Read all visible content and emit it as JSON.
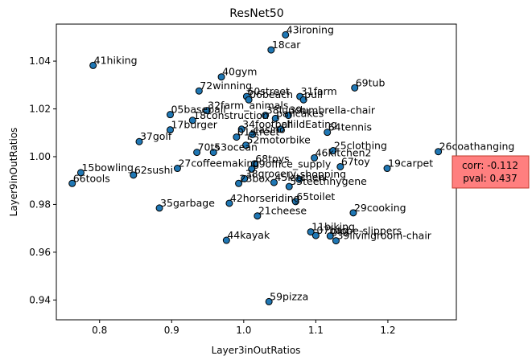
{
  "chart_data": {
    "type": "scatter",
    "title": "ResNet50",
    "xlabel": "Layer3inOutRatios",
    "ylabel": "Layer9inOutRatios",
    "xlim": [
      0.74,
      1.295
    ],
    "ylim": [
      0.9317,
      1.0555
    ],
    "xticks": [
      0.8,
      0.9,
      1.0,
      1.1,
      1.2
    ],
    "xtick_labels": [
      "0.8",
      "0.9",
      "1.0",
      "1.1",
      "1.2"
    ],
    "yticks": [
      0.94,
      0.96,
      0.98,
      1.0,
      1.02,
      1.04
    ],
    "ytick_labels": [
      "0.94",
      "0.96",
      "0.98",
      "1.00",
      "1.02",
      "1.04"
    ],
    "grid": false,
    "marker_color": "#1f77b4",
    "marker_edge": "#000000",
    "annotation": {
      "line1": "corr: -0.112",
      "line2": "pval: 0.437",
      "box_color": "#ff7f7f",
      "edge_color": "#c0392b"
    },
    "points": [
      {
        "label": "43ironing",
        "x": 1.058,
        "y": 1.051
      },
      {
        "label": "18car",
        "x": 1.038,
        "y": 1.0447
      },
      {
        "label": "41hiking",
        "x": 0.791,
        "y": 1.0382
      },
      {
        "label": "40gym",
        "x": 0.969,
        "y": 1.0334
      },
      {
        "label": "69tub",
        "x": 1.154,
        "y": 1.0288
      },
      {
        "label": "72winning",
        "x": 0.938,
        "y": 1.0275
      },
      {
        "label": "60street",
        "x": 1.004,
        "y": 1.0252
      },
      {
        "label": "31farm",
        "x": 1.078,
        "y": 1.0252
      },
      {
        "label": "06beach",
        "x": 1.007,
        "y": 1.0238
      },
      {
        "label": "pull",
        "x": 1.083,
        "y": 1.0238
      },
      {
        "label": "32farm_animals",
        "x": 0.949,
        "y": 1.0193
      },
      {
        "label": "05baseball",
        "x": 0.898,
        "y": 1.0176
      },
      {
        "label": "38lunch",
        "x": 1.03,
        "y": 1.0173
      },
      {
        "label": "39umbrella-chair",
        "x": 1.062,
        "y": 1.0173
      },
      {
        "label": "pancakes",
        "x": 1.044,
        "y": 1.016
      },
      {
        "label": "18construction",
        "x": 0.929,
        "y": 1.0152
      },
      {
        "label": "34football",
        "x": 0.997,
        "y": 1.0115
      },
      {
        "label": "childEating",
        "x": 1.051,
        "y": 1.0115
      },
      {
        "label": "17burger",
        "x": 0.898,
        "y": 1.0112
      },
      {
        "label": "64tennis",
        "x": 1.116,
        "y": 1.0102
      },
      {
        "label": "casino",
        "x": 1.012,
        "y": 1.0093
      },
      {
        "label": "01street",
        "x": 0.99,
        "y": 1.0082
      },
      {
        "label": "37golf",
        "x": 0.855,
        "y": 1.0063
      },
      {
        "label": "52motorbike",
        "x": 1.003,
        "y": 1.0048
      },
      {
        "label": "25clothing",
        "x": 1.124,
        "y": 1.0025
      },
      {
        "label": "70ts",
        "x": 0.935,
        "y": 1.0018
      },
      {
        "label": "53ocean",
        "x": 0.958,
        "y": 1.0018
      },
      {
        "label": "26coathanging",
        "x": 1.27,
        "y": 1.0021
      },
      {
        "label": "46kitchen2",
        "x": 1.098,
        "y": 0.9995
      },
      {
        "label": "68toys",
        "x": 1.015,
        "y": 0.997
      },
      {
        "label": "27coffeemaking",
        "x": 0.908,
        "y": 0.9951
      },
      {
        "label": "09office_supply",
        "x": 1.011,
        "y": 0.9948
      },
      {
        "label": "67toy",
        "x": 1.134,
        "y": 0.9958
      },
      {
        "label": "19carpet",
        "x": 1.199,
        "y": 0.9951
      },
      {
        "label": "15bowling",
        "x": 0.774,
        "y": 0.9933
      },
      {
        "label": "62sushi",
        "x": 0.847,
        "y": 0.9923
      },
      {
        "label": "38grocery",
        "x": 1.001,
        "y": 0.9908
      },
      {
        "label": "shopping",
        "x": 1.077,
        "y": 0.9905
      },
      {
        "label": "66tools",
        "x": 0.762,
        "y": 0.9888
      },
      {
        "label": "23box",
        "x": 0.993,
        "y": 0.9888
      },
      {
        "label": "45kitchen",
        "x": 1.042,
        "y": 0.9892
      },
      {
        "label": "53teethhygene",
        "x": 1.063,
        "y": 0.9875
      },
      {
        "label": "42horseriding",
        "x": 0.98,
        "y": 0.9805
      },
      {
        "label": "65toilet",
        "x": 1.072,
        "y": 0.9812
      },
      {
        "label": "35garbage",
        "x": 0.883,
        "y": 0.9785
      },
      {
        "label": "29cooking",
        "x": 1.152,
        "y": 0.9765
      },
      {
        "label": "21cheese",
        "x": 1.019,
        "y": 0.9752
      },
      {
        "label": "11biking",
        "x": 1.093,
        "y": 0.9685
      },
      {
        "label": "07bag",
        "x": 1.1,
        "y": 0.967
      },
      {
        "label": "globe-slippers",
        "x": 1.12,
        "y": 0.9668
      },
      {
        "label": "39livingroom-chair",
        "x": 1.128,
        "y": 0.9648
      },
      {
        "label": "44kayak",
        "x": 0.976,
        "y": 0.965
      },
      {
        "label": "59pizza",
        "x": 1.035,
        "y": 0.9393
      }
    ]
  }
}
